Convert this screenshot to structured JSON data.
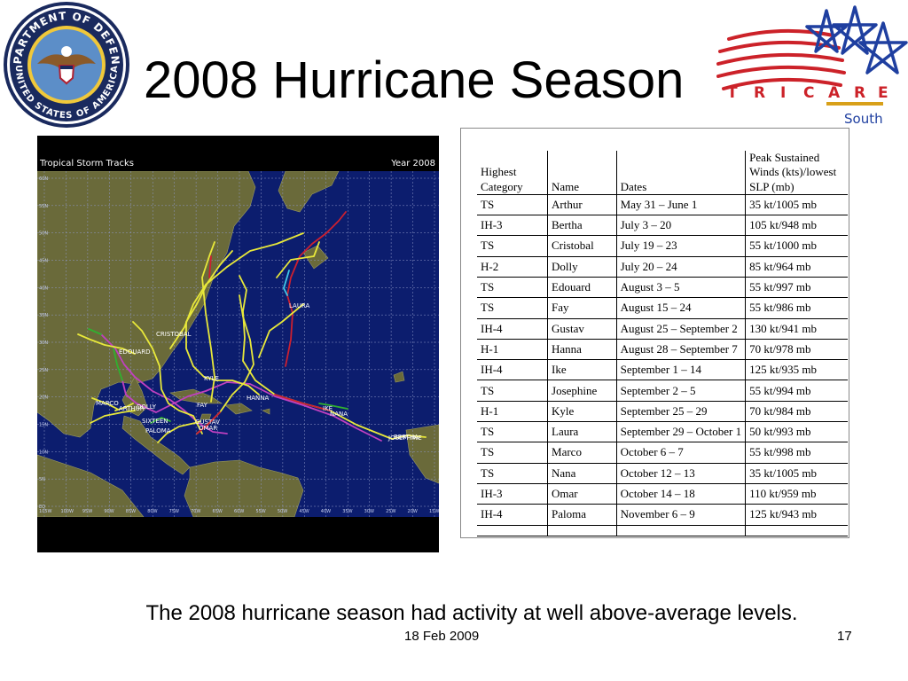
{
  "slide": {
    "title": "2008 Hurricane Season",
    "caption": "The 2008 hurricane season had activity at well above-average levels.",
    "date": "18 Feb 2009",
    "page_number": "17"
  },
  "seal": {
    "text_top": "DEPARTMENT OF DEFENSE",
    "text_bottom": "UNITED STATES OF AMERICA",
    "icon": "eagle-seal-icon"
  },
  "logo": {
    "word": "TRICARE",
    "letters": [
      "T",
      "R",
      "I",
      "C",
      "A",
      "R",
      "E"
    ],
    "region": "South",
    "icon": "tricare-stars-icon",
    "colors": {
      "red": "#cc2229",
      "blue": "#1f3fa0",
      "accent_gold": "#d8a019"
    }
  },
  "map": {
    "title": "Tropical Storm Tracks",
    "year_label": "Year 2008",
    "lat_labels": [
      "60N",
      "55N",
      "50N",
      "45N",
      "40N",
      "35N",
      "30N",
      "25N",
      "20N",
      "15N",
      "10N",
      "5N",
      "EQ"
    ],
    "lon_labels": [
      "105W",
      "100W",
      "95W",
      "90W",
      "85W",
      "80W",
      "75W",
      "70W",
      "65W",
      "60W",
      "55W",
      "50W",
      "45W",
      "40W",
      "35W",
      "30W",
      "25W",
      "20W",
      "15W"
    ],
    "storm_labels": [
      "LAURA",
      "CRISTOBAL",
      "EDOUARD",
      "KYLE",
      "HANNA",
      "IKE",
      "NANA",
      "FAY",
      "MARCO",
      "ARTHUR",
      "DOLLY",
      "SIXTEEN",
      "PALOMA",
      "GUSTAV",
      "OMAR",
      "JOSEPHINE",
      "BERTHA"
    ],
    "colors": {
      "ocean": "#0c1d6e",
      "land": "#6a6a3a",
      "grid": "#8f98c8",
      "tropical_storm": "#e8e83a",
      "hurricane": "#cc2030",
      "major_hurricane": "#c040c0",
      "depression": "#30b030",
      "extratropical": "#40c8e8"
    }
  },
  "table": {
    "headers": [
      "Highest Category",
      "Name",
      "Dates",
      "Peak Sustained Winds (kts)/lowest SLP (mb)"
    ],
    "rows": [
      [
        "TS",
        "Arthur",
        "May 31 – June 1",
        "35 kt/1005 mb"
      ],
      [
        "IH-3",
        "Bertha",
        "July 3 – 20",
        "105 kt/948 mb"
      ],
      [
        "TS",
        "Cristobal",
        "July 19 – 23",
        "55 kt/1000 mb"
      ],
      [
        "H-2",
        "Dolly",
        "July 20 – 24",
        "85 kt/964 mb"
      ],
      [
        "TS",
        "Edouard",
        "August 3 – 5",
        "55 kt/997 mb"
      ],
      [
        "TS",
        "Fay",
        "August 15 – 24",
        "55 kt/986 mb"
      ],
      [
        "IH-4",
        "Gustav",
        "August 25 – September 2",
        "130 kt/941 mb"
      ],
      [
        "H-1",
        "Hanna",
        "August 28 – September 7",
        "70 kt/978 mb"
      ],
      [
        "IH-4",
        "Ike",
        "September 1 – 14",
        "125 kt/935 mb"
      ],
      [
        "TS",
        "Josephine",
        "September 2 – 5",
        "55 kt/994 mb"
      ],
      [
        "H-1",
        "Kyle",
        "September 25 – 29",
        "70 kt/984 mb"
      ],
      [
        "TS",
        "Laura",
        "September 29 – October 1",
        "50 kt/993 mb"
      ],
      [
        "TS",
        "Marco",
        "October 6 – 7",
        "55 kt/998 mb"
      ],
      [
        "TS",
        "Nana",
        "October 12 – 13",
        "35 kt/1005 mb"
      ],
      [
        "IH-3",
        "Omar",
        "October 14 – 18",
        "110 kt/959 mb"
      ],
      [
        "IH-4",
        "Paloma",
        "November 6 – 9",
        "125 kt/943 mb"
      ]
    ]
  }
}
